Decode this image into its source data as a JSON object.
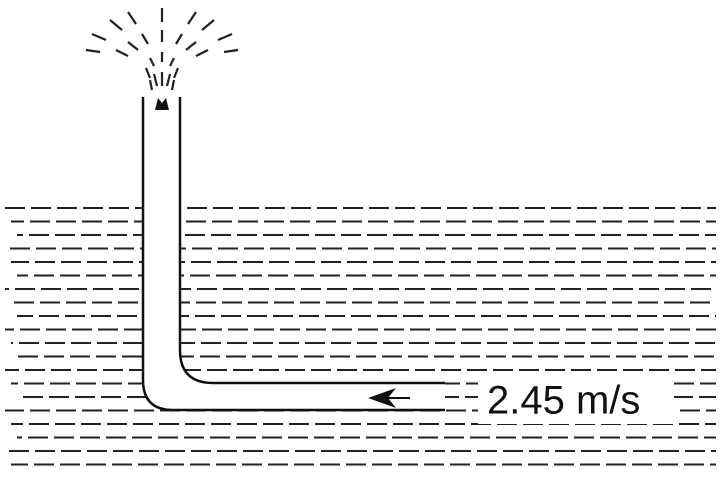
{
  "flow": {
    "speed_label": "2.45 m/s"
  }
}
